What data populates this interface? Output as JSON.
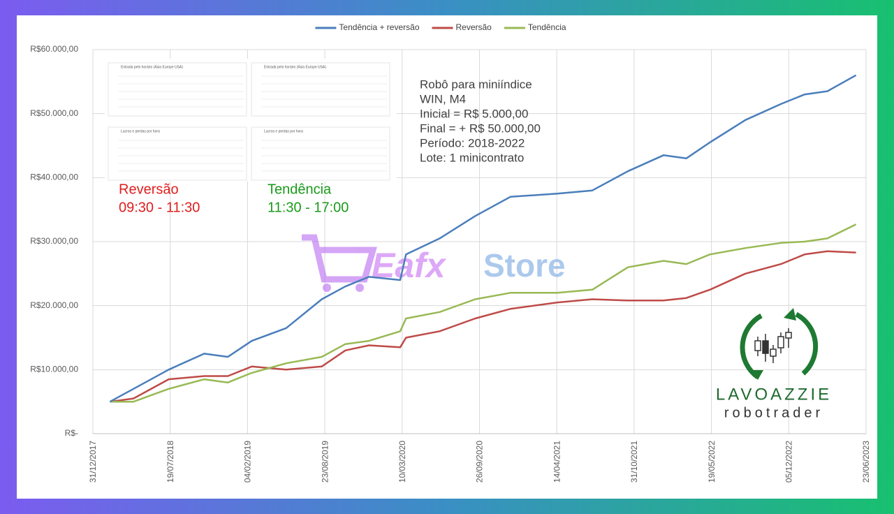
{
  "chart_data": {
    "type": "line",
    "x": [
      "13/02/2018",
      "15/04/2018",
      "15/07/2018",
      "15/10/2018",
      "15/12/2018",
      "15/02/2019",
      "15/05/2019",
      "15/08/2019",
      "15/10/2019",
      "15/12/2019",
      "05/03/2020",
      "20/03/2020",
      "15/06/2020",
      "15/09/2020",
      "15/12/2020",
      "15/04/2021",
      "15/07/2021",
      "15/10/2021",
      "15/01/2022",
      "15/03/2022",
      "15/05/2022",
      "15/08/2022",
      "15/11/2022",
      "15/01/2023",
      "15/03/2023",
      "28/05/2023"
    ],
    "series": [
      {
        "name": "Tendência + reversão",
        "color": "#4a7ebb",
        "values": [
          5000,
          7000,
          10000,
          12500,
          12000,
          14500,
          16500,
          21000,
          23000,
          24500,
          24000,
          28000,
          30500,
          34000,
          37000,
          37500,
          38000,
          41000,
          43500,
          43000,
          45500,
          49000,
          51500,
          53000,
          53500,
          56000
        ]
      },
      {
        "name": "Reversão",
        "color": "#be4b48",
        "values": [
          5000,
          5500,
          8500,
          9000,
          9000,
          10500,
          10000,
          10500,
          13000,
          13800,
          13500,
          15000,
          16000,
          18000,
          19500,
          20500,
          21000,
          20800,
          20800,
          21200,
          22500,
          25000,
          26500,
          28000,
          28500,
          28300
        ]
      },
      {
        "name": "Tendência",
        "color": "#98b954",
        "values": [
          5000,
          5000,
          7000,
          8500,
          8000,
          9500,
          11000,
          12000,
          14000,
          14500,
          16000,
          18000,
          19000,
          21000,
          22000,
          22000,
          22500,
          26000,
          27000,
          26500,
          28000,
          29000,
          29800,
          30000,
          30500,
          32700
        ]
      }
    ],
    "xlim": [
      "31/12/2017",
      "23/06/2023"
    ],
    "xticks": [
      "31/12/2017",
      "19/07/2018",
      "04/02/2019",
      "23/08/2019",
      "10/03/2020",
      "26/09/2020",
      "14/04/2021",
      "31/10/2021",
      "19/05/2022",
      "05/12/2022",
      "23/06/2023"
    ],
    "ylim": [
      0,
      60000
    ],
    "yticks": [
      {
        "value": 0,
        "label": "R$-"
      },
      {
        "value": 10000,
        "label": "R$10.000,00"
      },
      {
        "value": 20000,
        "label": "R$20.000,00"
      },
      {
        "value": 30000,
        "label": "R$30.000,00"
      },
      {
        "value": 40000,
        "label": "R$40.000,00"
      },
      {
        "value": 50000,
        "label": "R$50.000,00"
      },
      {
        "value": 60000,
        "label": "R$60.000,00"
      }
    ],
    "grid": true,
    "legend": "top",
    "annotation": [
      "Robô para miniíndice",
      "WIN, M4",
      "Inicial = R$ 5.000,00",
      "Final = + R$ 50.000,00",
      "Período: 2018-2022",
      "Lote: 1 minicontrato"
    ],
    "inset_titles": [
      "Entrada pelo horário (Ásia Europe USA)",
      "Entrada pelo horário (Ásia Europe USA)",
      "Lucros e perdas por hora",
      "Lucros e perdas por hora"
    ],
    "reversal_label": "Reversão",
    "reversal_hours": "09:30 - 11:30",
    "trend_label": "Tendência",
    "trend_hours": "11:30 - 17:00",
    "watermark": [
      "Eafx",
      "Store"
    ],
    "logo": [
      "LAVOAZZIE",
      "robotrader"
    ]
  }
}
